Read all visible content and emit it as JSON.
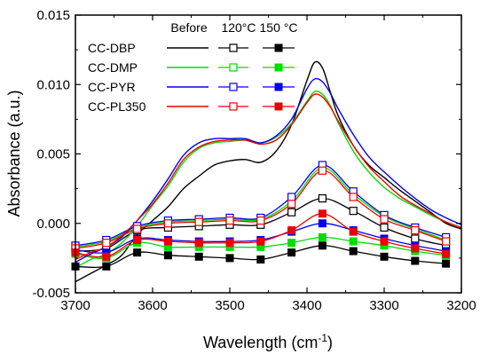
{
  "chart_data": {
    "type": "line",
    "xlabel": "Wavelength (cm",
    "xlabel_sup": "-1",
    "xlabel_suffix": ")",
    "ylabel": "Absorbance (a.u.)",
    "xlim": [
      3700,
      3200
    ],
    "ylim": [
      -0.005,
      0.015
    ],
    "x_ticks": [
      3700,
      3600,
      3500,
      3400,
      3300,
      3200
    ],
    "y_ticks": [
      -0.005,
      0.0,
      0.005,
      0.01,
      0.015
    ],
    "y_tick_labels": [
      "-0.005",
      "0.000",
      "0.005",
      "0.010",
      "0.015"
    ],
    "legend_headers": [
      "Before",
      "120°C",
      "150 °C"
    ],
    "legend_placement": "top-left",
    "series": [
      {
        "name": "CC-DBP",
        "color": "#000000",
        "before": [
          [
            3700,
            -0.0042
          ],
          [
            3680,
            -0.0036
          ],
          [
            3660,
            -0.003
          ],
          [
            3640,
            -0.0023
          ],
          [
            3620,
            -0.0008
          ],
          [
            3600,
            0.0002
          ],
          [
            3580,
            0.0012
          ],
          [
            3560,
            0.0025
          ],
          [
            3540,
            0.0034
          ],
          [
            3520,
            0.0042
          ],
          [
            3500,
            0.0045
          ],
          [
            3480,
            0.0046
          ],
          [
            3460,
            0.0044
          ],
          [
            3440,
            0.0052
          ],
          [
            3420,
            0.0071
          ],
          [
            3400,
            0.0103
          ],
          [
            3390,
            0.0116
          ],
          [
            3380,
            0.0112
          ],
          [
            3370,
            0.0095
          ],
          [
            3360,
            0.0078
          ],
          [
            3340,
            0.0056
          ],
          [
            3320,
            0.0042
          ],
          [
            3300,
            0.0033
          ],
          [
            3280,
            0.0024
          ],
          [
            3260,
            0.0016
          ],
          [
            3240,
            0.0008
          ],
          [
            3220,
            0.0
          ],
          [
            3200,
            -0.0004
          ]
        ],
        "t120": [
          [
            3700,
            -0.002
          ],
          [
            3660,
            -0.0018
          ],
          [
            3620,
            -0.0005
          ],
          [
            3580,
            -0.0003
          ],
          [
            3540,
            -0.0002
          ],
          [
            3500,
            -0.0001
          ],
          [
            3460,
            -0.0001
          ],
          [
            3420,
            0.0008
          ],
          [
            3380,
            0.0018
          ],
          [
            3340,
            0.0009
          ],
          [
            3300,
            -0.0003
          ],
          [
            3260,
            -0.0011
          ],
          [
            3220,
            -0.0016
          ]
        ],
        "t150": [
          [
            3700,
            -0.0031
          ],
          [
            3660,
            -0.0031
          ],
          [
            3620,
            -0.0021
          ],
          [
            3580,
            -0.0023
          ],
          [
            3540,
            -0.0024
          ],
          [
            3500,
            -0.0025
          ],
          [
            3460,
            -0.0026
          ],
          [
            3420,
            -0.0021
          ],
          [
            3380,
            -0.0016
          ],
          [
            3340,
            -0.002
          ],
          [
            3300,
            -0.0024
          ],
          [
            3260,
            -0.0027
          ],
          [
            3220,
            -0.0029
          ]
        ]
      },
      {
        "name": "CC-DMP",
        "color": "#00dd00",
        "before": [
          [
            3700,
            -0.0032
          ],
          [
            3680,
            -0.0026
          ],
          [
            3660,
            -0.0022
          ],
          [
            3640,
            -0.0014
          ],
          [
            3620,
            -0.0002
          ],
          [
            3600,
            0.0013
          ],
          [
            3580,
            0.0027
          ],
          [
            3560,
            0.0044
          ],
          [
            3540,
            0.0054
          ],
          [
            3520,
            0.0058
          ],
          [
            3500,
            0.0059
          ],
          [
            3480,
            0.006
          ],
          [
            3460,
            0.0058
          ],
          [
            3440,
            0.0062
          ],
          [
            3420,
            0.0072
          ],
          [
            3400,
            0.0088
          ],
          [
            3390,
            0.0095
          ],
          [
            3380,
            0.0093
          ],
          [
            3370,
            0.0085
          ],
          [
            3360,
            0.0073
          ],
          [
            3340,
            0.0052
          ],
          [
            3320,
            0.0037
          ],
          [
            3300,
            0.0026
          ],
          [
            3280,
            0.0018
          ],
          [
            3260,
            0.0012
          ],
          [
            3240,
            0.0006
          ],
          [
            3220,
            0.0001
          ],
          [
            3200,
            -0.0003
          ]
        ],
        "t120": [
          [
            3700,
            -0.0017
          ],
          [
            3660,
            -0.0013
          ],
          [
            3620,
            -0.0003
          ],
          [
            3580,
            0.0001
          ],
          [
            3540,
            0.0002
          ],
          [
            3500,
            0.0003
          ],
          [
            3460,
            0.0003
          ],
          [
            3420,
            0.0016
          ],
          [
            3380,
            0.004
          ],
          [
            3340,
            0.0021
          ],
          [
            3300,
            0.0005
          ],
          [
            3260,
            -0.0004
          ],
          [
            3220,
            -0.0012
          ]
        ],
        "t150": [
          [
            3700,
            -0.0022
          ],
          [
            3660,
            -0.0025
          ],
          [
            3620,
            -0.0014
          ],
          [
            3580,
            -0.0017
          ],
          [
            3540,
            -0.0017
          ],
          [
            3500,
            -0.0017
          ],
          [
            3460,
            -0.0017
          ],
          [
            3420,
            -0.0014
          ],
          [
            3380,
            -0.001
          ],
          [
            3340,
            -0.0013
          ],
          [
            3300,
            -0.0016
          ],
          [
            3260,
            -0.002
          ],
          [
            3220,
            -0.0023
          ]
        ]
      },
      {
        "name": "CC-PYR",
        "color": "#0000ee",
        "before": [
          [
            3700,
            -0.0028
          ],
          [
            3680,
            -0.0022
          ],
          [
            3660,
            -0.0017
          ],
          [
            3640,
            -0.001
          ],
          [
            3620,
            0.0002
          ],
          [
            3600,
            0.0016
          ],
          [
            3580,
            0.0032
          ],
          [
            3560,
            0.0049
          ],
          [
            3540,
            0.0058
          ],
          [
            3520,
            0.0061
          ],
          [
            3500,
            0.0061
          ],
          [
            3480,
            0.0061
          ],
          [
            3460,
            0.0058
          ],
          [
            3440,
            0.0063
          ],
          [
            3420,
            0.0075
          ],
          [
            3400,
            0.0097
          ],
          [
            3390,
            0.0104
          ],
          [
            3380,
            0.0102
          ],
          [
            3370,
            0.0094
          ],
          [
            3360,
            0.0083
          ],
          [
            3340,
            0.0064
          ],
          [
            3320,
            0.0048
          ],
          [
            3300,
            0.0037
          ],
          [
            3280,
            0.0027
          ],
          [
            3260,
            0.0018
          ],
          [
            3240,
            0.001
          ],
          [
            3220,
            0.0004
          ],
          [
            3200,
            -0.0001
          ]
        ],
        "t120": [
          [
            3700,
            -0.0016
          ],
          [
            3660,
            -0.0012
          ],
          [
            3620,
            -0.0002
          ],
          [
            3580,
            0.0002
          ],
          [
            3540,
            0.0003
          ],
          [
            3500,
            0.0004
          ],
          [
            3460,
            0.0004
          ],
          [
            3420,
            0.0019
          ],
          [
            3380,
            0.0042
          ],
          [
            3340,
            0.0023
          ],
          [
            3300,
            0.0006
          ],
          [
            3260,
            -0.0003
          ],
          [
            3220,
            -0.001
          ]
        ],
        "t150": [
          [
            3700,
            -0.0019
          ],
          [
            3660,
            -0.0021
          ],
          [
            3620,
            -0.0011
          ],
          [
            3580,
            -0.0012
          ],
          [
            3540,
            -0.0013
          ],
          [
            3500,
            -0.0013
          ],
          [
            3460,
            -0.0012
          ],
          [
            3420,
            -0.0006
          ],
          [
            3380,
            0.0
          ],
          [
            3340,
            -0.0005
          ],
          [
            3300,
            -0.0011
          ],
          [
            3260,
            -0.0016
          ],
          [
            3220,
            -0.002
          ]
        ]
      },
      {
        "name": "CC-PL350",
        "color": "#ee0000",
        "before": [
          [
            3700,
            -0.0026
          ],
          [
            3680,
            -0.0021
          ],
          [
            3660,
            -0.0017
          ],
          [
            3640,
            -0.0009
          ],
          [
            3620,
            0.0002
          ],
          [
            3600,
            0.0014
          ],
          [
            3580,
            0.0029
          ],
          [
            3560,
            0.0046
          ],
          [
            3540,
            0.0055
          ],
          [
            3520,
            0.0059
          ],
          [
            3500,
            0.006
          ],
          [
            3480,
            0.006
          ],
          [
            3460,
            0.0057
          ],
          [
            3440,
            0.006
          ],
          [
            3420,
            0.0071
          ],
          [
            3400,
            0.0087
          ],
          [
            3390,
            0.0093
          ],
          [
            3380,
            0.0091
          ],
          [
            3370,
            0.0084
          ],
          [
            3360,
            0.0074
          ],
          [
            3340,
            0.0056
          ],
          [
            3320,
            0.0041
          ],
          [
            3300,
            0.003
          ],
          [
            3280,
            0.002
          ],
          [
            3260,
            0.0013
          ],
          [
            3240,
            0.0007
          ],
          [
            3220,
            0.0001
          ],
          [
            3200,
            -0.0003
          ]
        ],
        "t120": [
          [
            3700,
            -0.0018
          ],
          [
            3660,
            -0.0014
          ],
          [
            3620,
            -0.0004
          ],
          [
            3580,
            0.0
          ],
          [
            3540,
            0.0001
          ],
          [
            3500,
            0.0002
          ],
          [
            3460,
            0.0002
          ],
          [
            3420,
            0.0014
          ],
          [
            3380,
            0.0038
          ],
          [
            3340,
            0.0019
          ],
          [
            3300,
            0.0003
          ],
          [
            3260,
            -0.0005
          ],
          [
            3220,
            -0.0013
          ]
        ],
        "t150": [
          [
            3700,
            -0.0021
          ],
          [
            3660,
            -0.0024
          ],
          [
            3620,
            -0.0012
          ],
          [
            3580,
            -0.0013
          ],
          [
            3540,
            -0.0014
          ],
          [
            3500,
            -0.0014
          ],
          [
            3460,
            -0.0013
          ],
          [
            3420,
            -0.0005
          ],
          [
            3380,
            0.0007
          ],
          [
            3340,
            -0.0006
          ],
          [
            3300,
            -0.0013
          ],
          [
            3260,
            -0.0018
          ],
          [
            3220,
            -0.0022
          ]
        ]
      }
    ]
  }
}
